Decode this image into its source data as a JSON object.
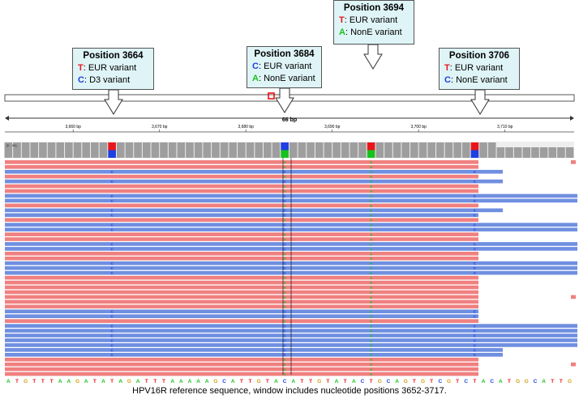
{
  "callouts": [
    {
      "title": "Position 3664",
      "lines": [
        {
          "base": "T",
          "suffix": ": EUR variant",
          "color": "#e8161c"
        },
        {
          "base": "C",
          "suffix": ": D3 variant",
          "color": "#1f3fe0"
        }
      ]
    },
    {
      "title": "Position 3684",
      "lines": [
        {
          "base": "C",
          "suffix": ": EUR variant",
          "color": "#1f3fe0"
        },
        {
          "base": "A",
          "suffix": ": NonE variant",
          "color": "#18c21c"
        }
      ]
    },
    {
      "title": "Position 3694",
      "lines": [
        {
          "base": "T",
          "suffix": ": EUR variant",
          "color": "#e8161c"
        },
        {
          "base": "A",
          "suffix": ": NonE variant",
          "color": "#18c21c"
        }
      ]
    },
    {
      "title": "Position 3706",
      "lines": [
        {
          "base": "T",
          "suffix": ": EUR variant",
          "color": "#e8161c"
        },
        {
          "base": "C",
          "suffix": ": NonE variant",
          "color": "#1f3fe0"
        }
      ]
    }
  ],
  "ruler": {
    "span_label": "66 bp",
    "ticks": [
      "3,660 bp",
      "3,670 bp",
      "3,680 bp",
      "3,690 bp",
      "3,700 bp",
      "3,710 bp"
    ]
  },
  "coverage_label": "[0 - 60]",
  "reference_sequence": "ATGTTTAAGATATAGATTTAAAAAGCATTGTACATTGTATACTGCAGTGTCGTCTACATGGCATTG",
  "caption": "HPV16R reference sequence, window includes nucleotide positions 3652-3717.",
  "colors": {
    "red_read": "#f08080",
    "blue_read": "#6f8fe0",
    "A": "#18c21c",
    "C": "#1f3fe0",
    "G": "#d4a017",
    "T": "#e8161c"
  }
}
